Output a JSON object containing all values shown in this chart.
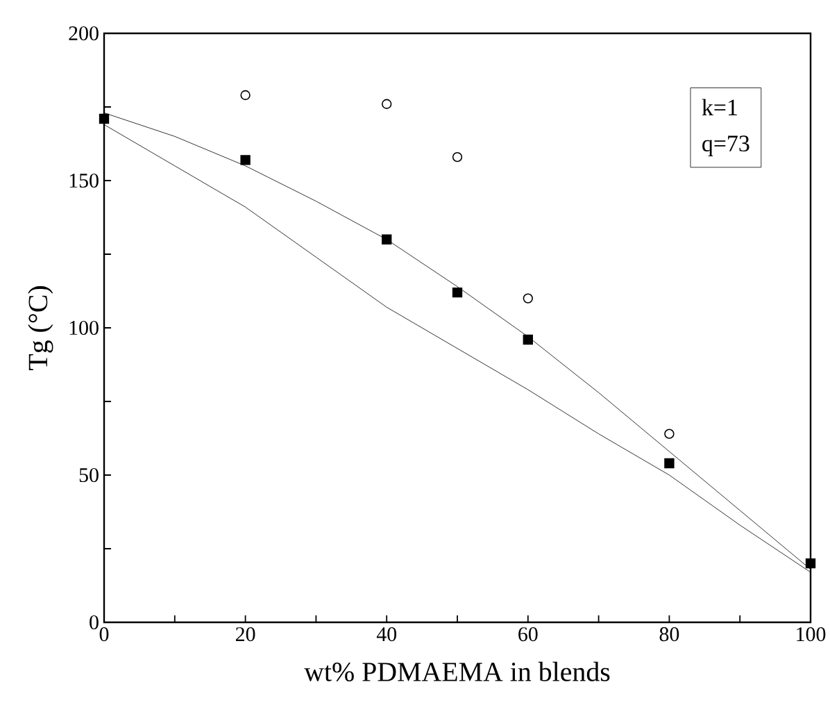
{
  "chart_data": {
    "type": "scatter",
    "xlabel": "wt% PDMAEMA in blends",
    "ylabel": "Tg (°C)",
    "xlim": [
      0,
      100
    ],
    "ylim": [
      0,
      200
    ],
    "xticks": [
      0,
      {
        "value": 10,
        "label": null
      },
      20,
      {
        "value": 30,
        "label": null
      },
      40,
      {
        "value": 50,
        "label": null
      },
      60,
      {
        "value": 70,
        "label": null
      },
      80,
      {
        "value": 90,
        "label": null
      },
      100
    ],
    "yticks": [
      0,
      {
        "value": 25,
        "label": null
      },
      50,
      {
        "value": 75,
        "label": null
      },
      100,
      {
        "value": 125,
        "label": null
      },
      150,
      {
        "value": 175,
        "label": null
      },
      200
    ],
    "grid": false,
    "annotations": [
      "k=1",
      "q=73"
    ],
    "series": [
      {
        "marker": "square",
        "color": "#000000",
        "x": [
          0,
          20,
          40,
          50,
          60,
          80,
          100
        ],
        "values": [
          171,
          157,
          130,
          112,
          96,
          54,
          20
        ]
      },
      {
        "marker": "circle",
        "color": "#000000",
        "x": [
          20,
          40,
          50,
          60,
          80
        ],
        "values": [
          179,
          176,
          158,
          110,
          64
        ]
      },
      {
        "type": "line",
        "marker": "none",
        "color": "#000000",
        "x": [
          0,
          10,
          20,
          30,
          40,
          50,
          60,
          70,
          80,
          90,
          100
        ],
        "values": [
          173,
          165,
          155,
          143,
          130,
          114,
          97,
          78,
          58,
          38,
          18
        ]
      },
      {
        "type": "line",
        "marker": "none",
        "color": "#000000",
        "x": [
          0,
          10,
          20,
          30,
          40,
          50,
          60,
          70,
          80,
          90,
          100
        ],
        "values": [
          169,
          155,
          141,
          124,
          107,
          93,
          79,
          64,
          50,
          33,
          17
        ]
      }
    ]
  }
}
